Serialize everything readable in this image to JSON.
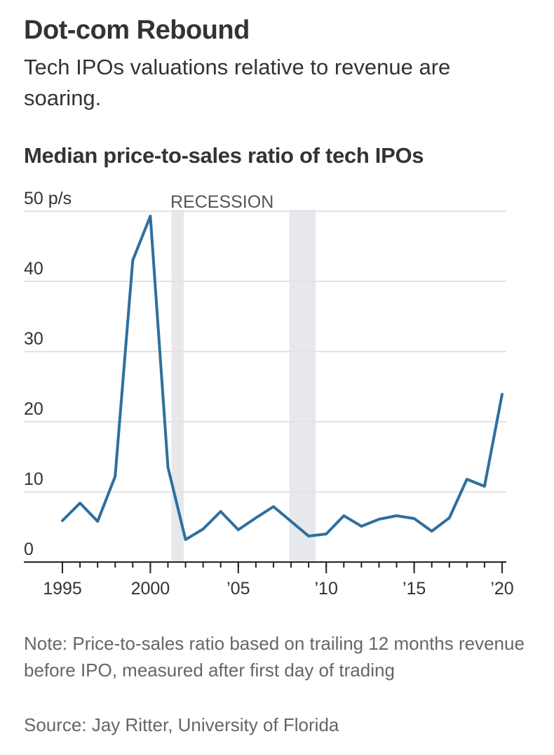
{
  "header": {
    "title": "Dot-com Rebound",
    "subtitle": "Tech IPOs valuations relative to revenue are soaring."
  },
  "colors": {
    "line": "#2e6f9e",
    "recession": "#e6e8eb",
    "grid": "#e3e3e3",
    "axis": "#222222",
    "text": "#333333",
    "note": "#666666"
  },
  "chart_data": {
    "type": "line",
    "title": "Median price-to-sales ratio of tech IPOs",
    "xlabel": "",
    "ylabel": "",
    "ylim": [
      0,
      50
    ],
    "xlim": [
      1995,
      2020
    ],
    "y_ticks": [
      {
        "value": 0,
        "label": "0"
      },
      {
        "value": 10,
        "label": "10"
      },
      {
        "value": 20,
        "label": "20"
      },
      {
        "value": 30,
        "label": "30"
      },
      {
        "value": 40,
        "label": "40"
      },
      {
        "value": 50,
        "label": "50 p/s"
      }
    ],
    "x_ticks": [
      {
        "value": 1995,
        "label": "1995"
      },
      {
        "value": 2000,
        "label": "2000"
      },
      {
        "value": 2005,
        "label": "’05"
      },
      {
        "value": 2010,
        "label": "’10"
      },
      {
        "value": 2015,
        "label": "’15"
      },
      {
        "value": 2020,
        "label": "’20"
      }
    ],
    "grid": true,
    "recession_label": "RECESSION",
    "recessions": [
      [
        2001.2,
        2001.9
      ],
      [
        2007.9,
        2009.4
      ]
    ],
    "x": [
      1995,
      1996,
      1997,
      1998,
      1999,
      2000,
      2001,
      2002,
      2003,
      2004,
      2005,
      2006,
      2007,
      2008,
      2009,
      2010,
      2011,
      2012,
      2013,
      2014,
      2015,
      2016,
      2017,
      2018,
      2019,
      2020
    ],
    "values": [
      5.9,
      8.4,
      5.8,
      12.2,
      43.0,
      49.3,
      13.5,
      3.2,
      4.7,
      7.2,
      4.6,
      6.3,
      7.9,
      5.8,
      3.7,
      4.0,
      6.6,
      5.1,
      6.1,
      6.6,
      6.2,
      4.4,
      6.3,
      11.8,
      10.8,
      23.9
    ]
  },
  "footer": {
    "note": "Note: Price-to-sales ratio based on trailing 12 months revenue before IPO, measured after first day of trading",
    "source": "Source: Jay Ritter, University of Florida"
  }
}
